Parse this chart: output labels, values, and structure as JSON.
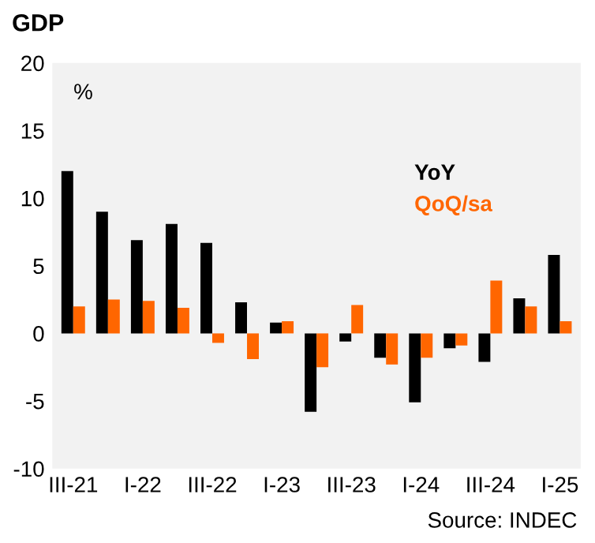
{
  "chart_data": {
    "type": "bar",
    "title": "GDP",
    "categories": [
      "III-21",
      null,
      "I-22",
      null,
      "III-22",
      null,
      "I-23",
      null,
      "III-23",
      null,
      "I-24",
      null,
      "III-24",
      null,
      "I-25"
    ],
    "series": [
      {
        "name": "YoY",
        "color": "#000000",
        "values": [
          12.0,
          9.0,
          6.9,
          8.1,
          6.7,
          2.3,
          0.8,
          -5.8,
          -0.6,
          -1.8,
          -5.1,
          -1.1,
          -2.1,
          2.6,
          5.8
        ]
      },
      {
        "name": "QoQ/sa",
        "color": "#ff6600",
        "values": [
          2.0,
          2.5,
          2.4,
          1.9,
          -0.7,
          -1.9,
          0.9,
          -2.5,
          2.1,
          -2.3,
          -1.8,
          -0.9,
          3.9,
          2.0,
          0.9
        ]
      }
    ],
    "ylim": [
      -10,
      20
    ],
    "yticks": [
      -10,
      -5,
      0,
      5,
      10,
      15,
      20
    ],
    "grid": false,
    "legend": "top right",
    "annotations": [
      "%",
      "Source: INDEC"
    ]
  }
}
